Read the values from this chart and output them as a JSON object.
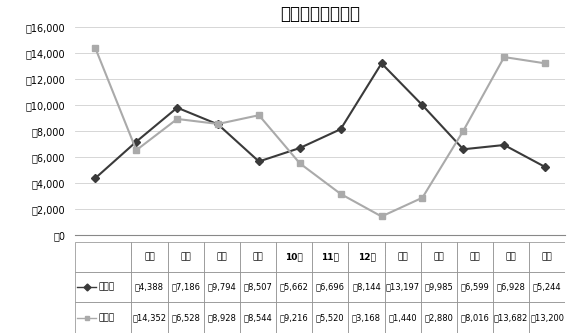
{
  "title": "太陽光発電の売買",
  "months": [
    "６月",
    "７月",
    "８月",
    "９月",
    "10月",
    "11月",
    "12月",
    "１月",
    "２月",
    "３月",
    "４月",
    "５月"
  ],
  "purchase": [
    4388,
    7186,
    9794,
    8507,
    5662,
    6696,
    8144,
    13197,
    9985,
    6599,
    6928,
    5244
  ],
  "sale": [
    14352,
    6528,
    8928,
    8544,
    9216,
    5520,
    3168,
    1440,
    2880,
    8016,
    13682,
    13200
  ],
  "purchase_label": "購入料",
  "sale_label": "売電料",
  "purchase_color": "#3a3a3a",
  "sale_color": "#aaaaaa",
  "ylim": [
    0,
    16000
  ],
  "yticks": [
    0,
    2000,
    4000,
    6000,
    8000,
    10000,
    12000,
    14000,
    16000
  ],
  "ytick_labels": [
    "￥0",
    "￥2,000",
    "￥4,000",
    "￥6,000",
    "￥8,000",
    "￥10,000",
    "￥12,000",
    "￥14,000",
    "￥16,000"
  ],
  "purchase_row": [
    "￥4,388",
    "￥7,186",
    "￥9,794",
    "￥8,507",
    "￥5,662",
    "￥6,696",
    "￥8,144",
    "￥13,197",
    "￥9,985",
    "￥6,599",
    "￥6,928",
    "￥5,244"
  ],
  "sale_row": [
    "￥14,352",
    "￥6,528",
    "￥8,928",
    "￥8,544",
    "￥9,216",
    "￥5,520",
    "￥3,168",
    "￥1,440",
    "￥2,880",
    "￥8,016",
    "￥13,682",
    "￥13,200"
  ],
  "background_color": "#ffffff",
  "grid_color": "#d0d0d0",
  "border_color": "#888888"
}
